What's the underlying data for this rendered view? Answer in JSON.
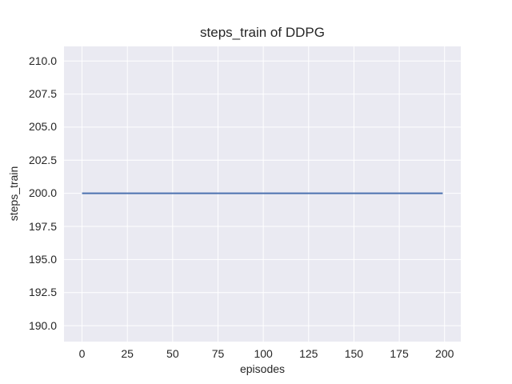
{
  "chart_data": {
    "type": "line",
    "title": "steps_train of DDPG",
    "xlabel": "episodes",
    "ylabel": "steps_train",
    "x_tick_labels": [
      "0",
      "25",
      "50",
      "75",
      "100",
      "125",
      "150",
      "175",
      "200"
    ],
    "x_tick_values": [
      0,
      25,
      50,
      75,
      100,
      125,
      150,
      175,
      200
    ],
    "y_tick_labels": [
      "190.0",
      "192.5",
      "195.0",
      "197.5",
      "200.0",
      "202.5",
      "205.0",
      "207.5",
      "210.0"
    ],
    "y_tick_values": [
      190.0,
      192.5,
      195.0,
      197.5,
      200.0,
      202.5,
      205.0,
      207.5,
      210.0
    ],
    "xlim": [
      -9.95,
      208.95
    ],
    "ylim": [
      188.8,
      211.1
    ],
    "grid": true,
    "legend_position": "none",
    "series": [
      {
        "name": "steps_train",
        "color": "#4C72B0",
        "x": [
          0,
          199
        ],
        "y": [
          200,
          200
        ]
      }
    ],
    "styles": {
      "plot_background": "#EAEAF2",
      "grid_color": "#FFFFFF",
      "text_color": "#262626",
      "figure_background": "#FFFFFF"
    }
  }
}
